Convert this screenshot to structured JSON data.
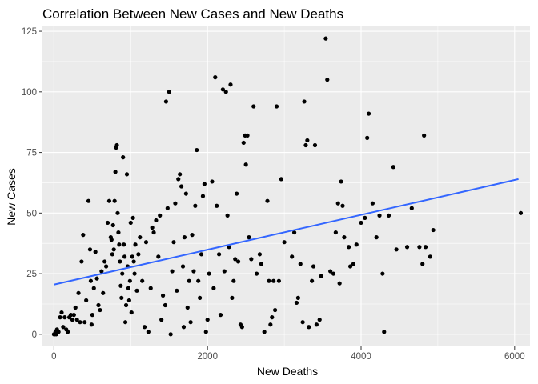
{
  "chart_data": {
    "type": "scatter",
    "title": "Correlation Between New Cases and New Deaths",
    "xlabel": "New Deaths",
    "ylabel": "New Cases",
    "xlim": [
      -150,
      6200
    ],
    "ylim": [
      -5,
      127
    ],
    "xticks": [
      0,
      2000,
      4000,
      6000
    ],
    "yticks": [
      0,
      25,
      50,
      75,
      100,
      125
    ],
    "xtick_labels": [
      "0",
      "2000",
      "4000",
      "6000"
    ],
    "ytick_labels": [
      "0",
      "25",
      "50",
      "75",
      "100",
      "125"
    ],
    "grid": true,
    "legend": "none",
    "colors": {
      "points": "#000000",
      "trend": "#3366ff",
      "panel": "#ebebeb",
      "grid": "#ffffff"
    },
    "trend_line": {
      "x": [
        0,
        6050
      ],
      "y": [
        20.5,
        64
      ]
    },
    "points": [
      [
        0,
        0
      ],
      [
        20,
        1
      ],
      [
        30,
        0
      ],
      [
        10,
        0
      ],
      [
        40,
        2
      ],
      [
        60,
        1
      ],
      [
        80,
        7
      ],
      [
        100,
        9
      ],
      [
        120,
        3
      ],
      [
        140,
        7
      ],
      [
        160,
        2
      ],
      [
        180,
        1
      ],
      [
        200,
        7
      ],
      [
        220,
        8
      ],
      [
        240,
        6
      ],
      [
        260,
        8
      ],
      [
        280,
        11
      ],
      [
        300,
        6
      ],
      [
        320,
        17
      ],
      [
        340,
        5
      ],
      [
        360,
        30
      ],
      [
        380,
        41
      ],
      [
        400,
        5
      ],
      [
        420,
        14
      ],
      [
        450,
        55
      ],
      [
        470,
        35
      ],
      [
        480,
        22
      ],
      [
        490,
        4
      ],
      [
        500,
        8
      ],
      [
        520,
        19
      ],
      [
        540,
        34
      ],
      [
        560,
        23
      ],
      [
        580,
        12
      ],
      [
        600,
        10
      ],
      [
        620,
        26
      ],
      [
        640,
        17
      ],
      [
        660,
        30
      ],
      [
        680,
        28
      ],
      [
        700,
        46
      ],
      [
        720,
        55
      ],
      [
        740,
        40
      ],
      [
        750,
        39
      ],
      [
        760,
        33
      ],
      [
        770,
        45
      ],
      [
        780,
        35
      ],
      [
        790,
        55
      ],
      [
        800,
        67
      ],
      [
        810,
        77
      ],
      [
        820,
        78
      ],
      [
        830,
        50
      ],
      [
        840,
        42
      ],
      [
        850,
        37
      ],
      [
        860,
        30
      ],
      [
        870,
        20
      ],
      [
        880,
        15
      ],
      [
        890,
        25
      ],
      [
        900,
        73
      ],
      [
        910,
        37
      ],
      [
        920,
        32
      ],
      [
        930,
        5
      ],
      [
        940,
        12
      ],
      [
        950,
        66
      ],
      [
        960,
        28
      ],
      [
        970,
        19
      ],
      [
        980,
        14
      ],
      [
        990,
        22
      ],
      [
        1000,
        46
      ],
      [
        1010,
        9
      ],
      [
        1020,
        32
      ],
      [
        1030,
        48
      ],
      [
        1040,
        30
      ],
      [
        1050,
        25
      ],
      [
        1060,
        37
      ],
      [
        1080,
        18
      ],
      [
        1100,
        33
      ],
      [
        1120,
        40
      ],
      [
        1150,
        22
      ],
      [
        1180,
        3
      ],
      [
        1200,
        38
      ],
      [
        1230,
        1
      ],
      [
        1260,
        19
      ],
      [
        1280,
        44
      ],
      [
        1300,
        42
      ],
      [
        1330,
        47
      ],
      [
        1360,
        32
      ],
      [
        1380,
        49
      ],
      [
        1400,
        6
      ],
      [
        1420,
        16
      ],
      [
        1450,
        12
      ],
      [
        1460,
        96
      ],
      [
        1480,
        52
      ],
      [
        1500,
        100
      ],
      [
        1520,
        0
      ],
      [
        1540,
        26
      ],
      [
        1560,
        38
      ],
      [
        1580,
        54
      ],
      [
        1600,
        18
      ],
      [
        1620,
        64
      ],
      [
        1640,
        66
      ],
      [
        1660,
        61
      ],
      [
        1680,
        28
      ],
      [
        1690,
        3
      ],
      [
        1700,
        40
      ],
      [
        1720,
        58
      ],
      [
        1740,
        11
      ],
      [
        1760,
        22
      ],
      [
        1780,
        5
      ],
      [
        1800,
        41
      ],
      [
        1820,
        26
      ],
      [
        1840,
        53
      ],
      [
        1860,
        76
      ],
      [
        1880,
        22
      ],
      [
        1900,
        15
      ],
      [
        1920,
        33
      ],
      [
        1940,
        57
      ],
      [
        1960,
        62
      ],
      [
        1980,
        1
      ],
      [
        2000,
        6
      ],
      [
        2020,
        25
      ],
      [
        2060,
        63
      ],
      [
        2080,
        19
      ],
      [
        2100,
        106
      ],
      [
        2120,
        53
      ],
      [
        2150,
        33
      ],
      [
        2170,
        8
      ],
      [
        2200,
        101
      ],
      [
        2220,
        26
      ],
      [
        2240,
        100
      ],
      [
        2260,
        49
      ],
      [
        2280,
        36
      ],
      [
        2300,
        103
      ],
      [
        2320,
        15
      ],
      [
        2340,
        22
      ],
      [
        2360,
        31
      ],
      [
        2380,
        58
      ],
      [
        2400,
        30
      ],
      [
        2430,
        4
      ],
      [
        2450,
        3
      ],
      [
        2470,
        79
      ],
      [
        2490,
        82
      ],
      [
        2500,
        70
      ],
      [
        2520,
        82
      ],
      [
        2540,
        40
      ],
      [
        2570,
        31
      ],
      [
        2600,
        94
      ],
      [
        2640,
        25
      ],
      [
        2680,
        33
      ],
      [
        2700,
        29
      ],
      [
        2740,
        1
      ],
      [
        2780,
        55
      ],
      [
        2800,
        22
      ],
      [
        2820,
        4
      ],
      [
        2840,
        7
      ],
      [
        2860,
        22
      ],
      [
        2880,
        10
      ],
      [
        2900,
        94
      ],
      [
        2930,
        22
      ],
      [
        2960,
        64
      ],
      [
        3000,
        38
      ],
      [
        3100,
        32
      ],
      [
        3130,
        42
      ],
      [
        3160,
        13
      ],
      [
        3180,
        15
      ],
      [
        3210,
        29
      ],
      [
        3240,
        5
      ],
      [
        3260,
        96
      ],
      [
        3280,
        78
      ],
      [
        3300,
        80
      ],
      [
        3320,
        3
      ],
      [
        3360,
        22
      ],
      [
        3380,
        28
      ],
      [
        3400,
        78
      ],
      [
        3420,
        4
      ],
      [
        3460,
        6
      ],
      [
        3480,
        24
      ],
      [
        3540,
        122
      ],
      [
        3560,
        105
      ],
      [
        3600,
        26
      ],
      [
        3640,
        25
      ],
      [
        3670,
        42
      ],
      [
        3700,
        54
      ],
      [
        3720,
        21
      ],
      [
        3740,
        63
      ],
      [
        3760,
        53
      ],
      [
        3780,
        40
      ],
      [
        3840,
        36
      ],
      [
        3860,
        28
      ],
      [
        3900,
        29
      ],
      [
        3940,
        37
      ],
      [
        4000,
        46
      ],
      [
        4050,
        48
      ],
      [
        4080,
        81
      ],
      [
        4100,
        91
      ],
      [
        4150,
        54
      ],
      [
        4200,
        40
      ],
      [
        4240,
        49
      ],
      [
        4280,
        25
      ],
      [
        4300,
        1
      ],
      [
        4360,
        49
      ],
      [
        4420,
        69
      ],
      [
        4460,
        35
      ],
      [
        4600,
        36
      ],
      [
        4660,
        52
      ],
      [
        4760,
        36
      ],
      [
        4800,
        29
      ],
      [
        4820,
        82
      ],
      [
        4840,
        36
      ],
      [
        4900,
        32
      ],
      [
        4940,
        43
      ],
      [
        6080,
        50
      ]
    ]
  }
}
